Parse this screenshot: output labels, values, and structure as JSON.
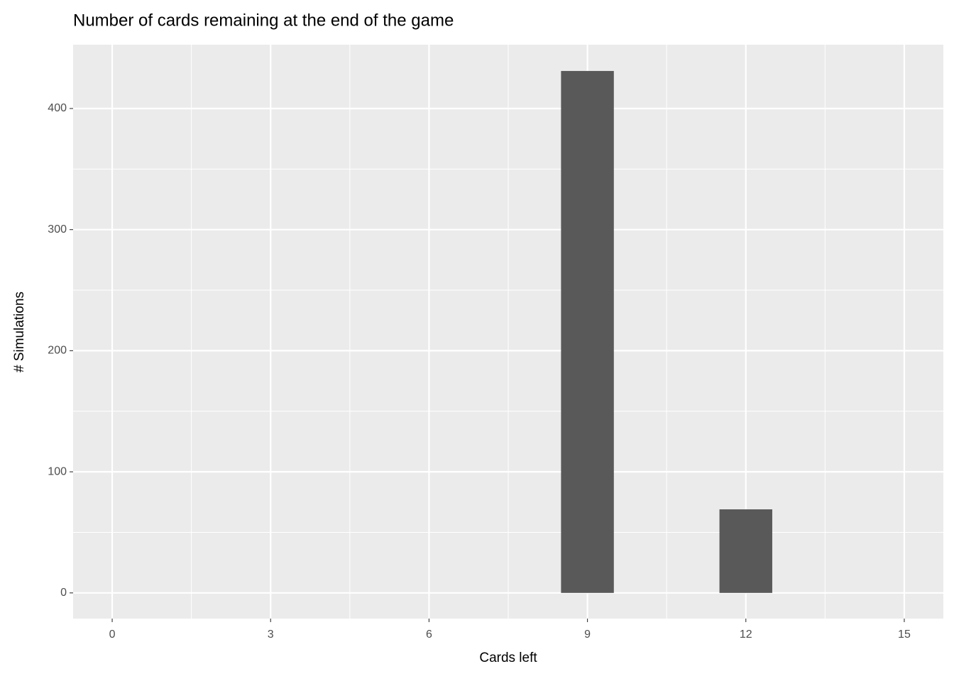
{
  "chart_data": {
    "type": "bar",
    "title": "Number of cards remaining at the end of the game",
    "x_label": "Cards left",
    "y_label": "# Simulations",
    "x": [
      9,
      12
    ],
    "values": [
      431,
      69
    ],
    "color": "#595959",
    "xlim": [
      -0.74,
      15.74
    ],
    "xticks": [
      0,
      3,
      6,
      9,
      12,
      15
    ],
    "ylim": [
      -21.2,
      452.7
    ],
    "yticks": [
      0,
      100,
      200,
      300,
      400
    ],
    "grid": true
  }
}
